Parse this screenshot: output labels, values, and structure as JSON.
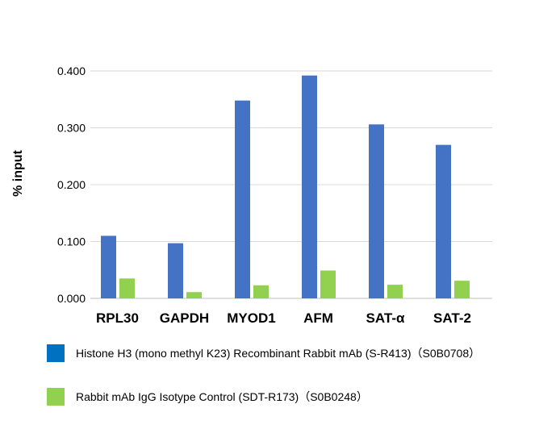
{
  "chart_data": {
    "type": "bar",
    "title": "",
    "xlabel": "",
    "ylabel": "% input",
    "ylim": [
      0,
      0.4
    ],
    "yticks": [
      "0.000",
      "0.100",
      "0.200",
      "0.300",
      "0.400"
    ],
    "grid": true,
    "legend_position": "bottom",
    "categories": [
      "RPL30",
      "GAPDH",
      "MYOD1",
      "AFM",
      "SAT-α",
      "SAT-2"
    ],
    "series": [
      {
        "name": "Histone H3 (mono methyl K23) Recombinant Rabbit mAb (S-R413)（S0B0708）",
        "color": "#4472C4",
        "values": [
          0.11,
          0.097,
          0.348,
          0.392,
          0.306,
          0.27
        ]
      },
      {
        "name": "Rabbit mAb IgG Isotype Control (SDT-R173)（S0B0248）",
        "color": "#92D050",
        "values": [
          0.035,
          0.011,
          0.023,
          0.049,
          0.024,
          0.031
        ]
      }
    ],
    "gridline_color": "#d9d9d9"
  }
}
